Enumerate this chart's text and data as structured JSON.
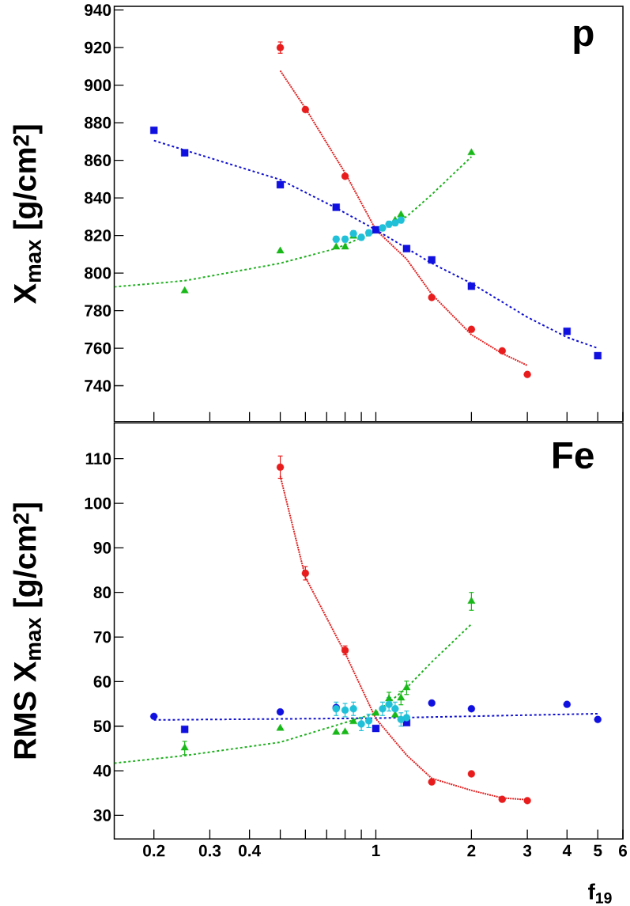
{
  "chart_data": [
    {
      "type": "scatter",
      "ylabel": "X$_{max}$ [g/cm$^{2}$]",
      "annotations": [
        "p"
      ],
      "xlim": [
        0.15,
        6
      ],
      "ylim": [
        721,
        942
      ],
      "log": "x",
      "tick_labels": "y",
      "xticks": [
        0.2,
        0.3,
        0.4,
        {
          "value": 0.5,
          "label": null
        },
        {
          "value": 0.6,
          "label": null
        },
        {
          "value": 0.7,
          "label": null
        },
        {
          "value": 0.8,
          "label": null
        },
        {
          "value": 0.9,
          "label": null
        },
        1,
        2,
        3,
        4,
        5,
        6
      ],
      "yticks": [
        740,
        760,
        780,
        800,
        820,
        840,
        860,
        880,
        900,
        920,
        940
      ],
      "series": [
        {
          "type": "line",
          "color": "#1010d0",
          "line_style": "dashed",
          "marker": "none",
          "x": [
            0.2,
            0.5,
            0.75,
            1,
            1.5,
            2,
            3,
            4,
            5
          ],
          "values": [
            870.5,
            849.7,
            834.6,
            823,
            805.2,
            794.5,
            776.5,
            765.8,
            760
          ]
        },
        {
          "type": "line",
          "color": "#e02020",
          "line_style": "dotted",
          "marker": "none",
          "x": [
            0.5,
            0.6,
            0.8,
            1,
            1.25,
            1.5,
            2,
            2.5,
            3
          ],
          "values": [
            907.7,
            887.7,
            853.3,
            823,
            807.4,
            788.7,
            767.2,
            757.2,
            750.8
          ]
        },
        {
          "type": "line",
          "color": "#20b020",
          "line_style": "dashed",
          "marker": "none",
          "x": [
            0.15,
            0.25,
            0.5,
            0.75,
            1,
            1.25,
            1.5,
            2
          ],
          "values": [
            792.6,
            795.9,
            805.2,
            813.1,
            822,
            830,
            841.8,
            861.9
          ]
        },
        {
          "color": "#1010e0",
          "marker": "square",
          "x": [
            0.2,
            0.25,
            0.5,
            0.75,
            1,
            1.25,
            1.5,
            2,
            4,
            5
          ],
          "values": [
            876,
            864,
            847,
            835,
            823,
            813,
            807,
            793,
            769,
            756
          ]
        },
        {
          "color": "#e81c1c",
          "marker": "circle",
          "x": [
            0.5,
            0.6,
            0.8,
            1.5,
            2,
            2.5,
            3
          ],
          "values": [
            920,
            887,
            851.5,
            787,
            770,
            758.6,
            746
          ],
          "errors": [
            3,
            null,
            null,
            null,
            null,
            null,
            null
          ]
        },
        {
          "color": "#18b818",
          "marker": "triangle",
          "x": [
            0.25,
            0.5,
            0.75,
            0.8,
            0.85,
            1.15,
            1.2,
            2
          ],
          "values": [
            790.5,
            811.7,
            813.8,
            813.8,
            819.6,
            828,
            831,
            864
          ]
        },
        {
          "color": "#20c0d8",
          "marker": "circle",
          "x": [
            0.75,
            0.8,
            0.85,
            0.9,
            0.95,
            1.05,
            1.1,
            1.15,
            1.2
          ],
          "values": [
            818,
            818,
            821,
            819,
            821.4,
            824,
            826,
            826.7,
            828.2
          ],
          "errors": [
            1.5,
            1.5,
            1.5,
            1.5,
            1.5,
            1.5,
            1.5,
            1.5,
            1.5
          ]
        }
      ]
    },
    {
      "type": "scatter",
      "ylabel": "RMS X$_{max}$ [g/cm$^{2}$]",
      "xlabel": "f$_{19}$",
      "annotations": [
        "Fe"
      ],
      "xlim": [
        0.15,
        6
      ],
      "ylim": [
        24.7,
        118
      ],
      "log": "x",
      "xticks": [
        0.2,
        0.3,
        0.4,
        {
          "value": 0.5,
          "label": null
        },
        {
          "value": 0.6,
          "label": null
        },
        {
          "value": 0.7,
          "label": null
        },
        {
          "value": 0.8,
          "label": null
        },
        {
          "value": 0.9,
          "label": null
        },
        1,
        2,
        3,
        4,
        5,
        6
      ],
      "yticks": [
        30,
        40,
        50,
        60,
        70,
        80,
        90,
        100,
        110
      ],
      "series": [
        {
          "type": "line",
          "color": "#1010d0",
          "line_style": "dashed",
          "marker": "none",
          "x": [
            0.2,
            1,
            5
          ],
          "values": [
            51.4,
            51.8,
            52.8
          ]
        },
        {
          "type": "line",
          "color": "#e02020",
          "line_style": "dotted",
          "marker": "none",
          "x": [
            0.5,
            0.6,
            0.8,
            1,
            1.25,
            1.5,
            2,
            2.5,
            3
          ],
          "values": [
            106.1,
            83.4,
            66.4,
            51.7,
            43.5,
            38.3,
            35.6,
            33.9,
            33.5
          ]
        },
        {
          "type": "line",
          "color": "#20b020",
          "line_style": "dashed",
          "marker": "none",
          "x": [
            0.15,
            0.25,
            0.5,
            0.75,
            1,
            1.25,
            1.5,
            2
          ],
          "values": [
            41.7,
            43.4,
            46.4,
            50.2,
            52.9,
            58.6,
            64.4,
            72.9
          ]
        },
        {
          "color": "#1010e0",
          "marker": "circle",
          "x": [
            0.2,
            0.5,
            0.75,
            1.5,
            2,
            4,
            5
          ],
          "values": [
            52.2,
            53.2,
            54.2,
            55.2,
            53.9,
            54.9,
            51.5
          ]
        },
        {
          "color": "#1010e0",
          "marker": "square",
          "x": [
            0.25,
            1,
            1.25
          ],
          "values": [
            49.3,
            49.5,
            50.8
          ]
        },
        {
          "color": "#e81c1c",
          "marker": "circle",
          "x": [
            0.5,
            0.6,
            0.8,
            1.5,
            2,
            2.5,
            3
          ],
          "values": [
            108.1,
            84.3,
            67,
            37.5,
            39.3,
            33.6,
            33.3
          ],
          "errors": [
            2.5,
            1.5,
            1,
            null,
            null,
            null,
            null
          ]
        },
        {
          "color": "#18b818",
          "marker": "triangle",
          "x": [
            0.25,
            0.5,
            0.75,
            0.8,
            0.85,
            1,
            1.1,
            1.15,
            1.2,
            1.25,
            2
          ],
          "values": [
            45.1,
            49.5,
            48.6,
            48.7,
            51,
            52.9,
            56.1,
            52.5,
            56.3,
            58.6,
            78
          ],
          "errors": [
            1.5,
            null,
            null,
            null,
            null,
            null,
            1.5,
            null,
            1.5,
            1.5,
            2
          ]
        },
        {
          "color": "#20c0d8",
          "marker": "circle",
          "x": [
            0.75,
            0.8,
            0.85,
            0.9,
            0.95,
            1.05,
            1.1,
            1.15,
            1.2,
            1.25
          ],
          "values": [
            53.9,
            53.6,
            53.9,
            50.5,
            51.2,
            53.9,
            54.9,
            53.9,
            51.5,
            51.9
          ],
          "errors": [
            1.5,
            1.5,
            1.5,
            1.5,
            1.5,
            1.5,
            1.5,
            1.5,
            1.5,
            1.5
          ]
        }
      ]
    }
  ]
}
